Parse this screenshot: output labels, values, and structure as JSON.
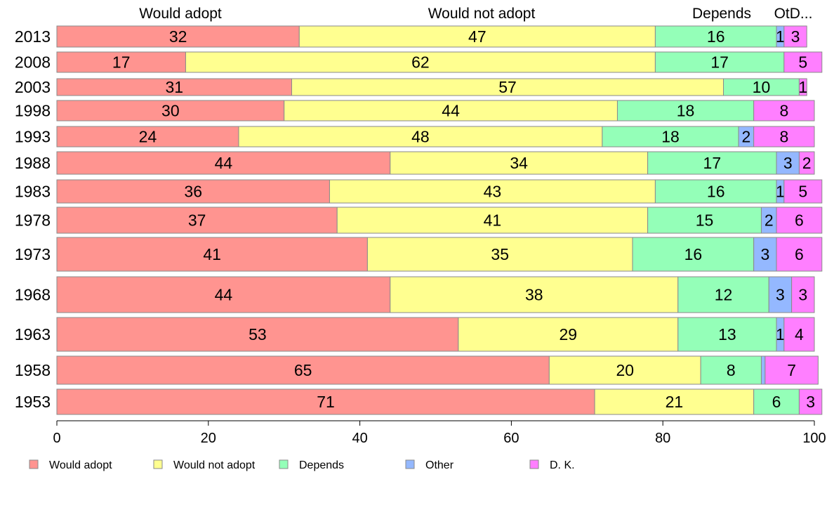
{
  "chart_data": {
    "type": "bar",
    "orientation": "horizontal",
    "stacked": true,
    "percent": true,
    "categories": [
      "2013",
      "2008",
      "2003",
      "1998",
      "1993",
      "1988",
      "1983",
      "1978",
      "1973",
      "1968",
      "1963",
      "1958",
      "1953"
    ],
    "series": [
      {
        "name": "Would adopt",
        "color": "#ff9490",
        "values": [
          32,
          17,
          31,
          30,
          24,
          44,
          36,
          37,
          41,
          44,
          53,
          65,
          71
        ]
      },
      {
        "name": "Would not adopt",
        "color": "#ffff90",
        "values": [
          47,
          62,
          57,
          44,
          48,
          34,
          43,
          41,
          35,
          38,
          29,
          20,
          21
        ]
      },
      {
        "name": "Depends",
        "color": "#94ffb8",
        "values": [
          16,
          17,
          10,
          18,
          18,
          17,
          16,
          15,
          16,
          12,
          13,
          8,
          6
        ]
      },
      {
        "name": "Other",
        "color": "#94b8ff",
        "values": [
          1,
          0,
          0,
          0,
          2,
          3,
          1,
          2,
          3,
          3,
          1,
          0.5,
          0
        ]
      },
      {
        "name": "D. K.",
        "color": "#ff7fff",
        "values": [
          3,
          5,
          1,
          8,
          8,
          2,
          5,
          6,
          6,
          3,
          4,
          7,
          3
        ]
      }
    ],
    "data_labels": [
      [
        "32",
        "47",
        "16",
        "1",
        "3"
      ],
      [
        "17",
        "62",
        "17",
        "",
        "5"
      ],
      [
        "31",
        "57",
        "10",
        "",
        "1"
      ],
      [
        "30",
        "44",
        "18",
        "",
        "8"
      ],
      [
        "24",
        "48",
        "18",
        "2",
        "8"
      ],
      [
        "44",
        "34",
        "17",
        "3",
        "2"
      ],
      [
        "36",
        "43",
        "16",
        "1",
        "5"
      ],
      [
        "37",
        "41",
        "15",
        "2",
        "6"
      ],
      [
        "41",
        "35",
        "16",
        "3",
        "6"
      ],
      [
        "44",
        "38",
        "12",
        "3",
        "3"
      ],
      [
        "53",
        "29",
        "13",
        "1",
        "4"
      ],
      [
        "65",
        "20",
        "8",
        "",
        "7"
      ],
      [
        "71",
        "21",
        "6",
        "",
        "3"
      ]
    ],
    "top_headers": [
      "Would adopt",
      "Would not adopt",
      "Depends",
      "OtD..."
    ],
    "xlim": [
      0,
      100
    ],
    "xticks": [
      "0",
      "20",
      "40",
      "60",
      "80",
      "100"
    ],
    "legend_position": "bottom",
    "grid": false
  }
}
